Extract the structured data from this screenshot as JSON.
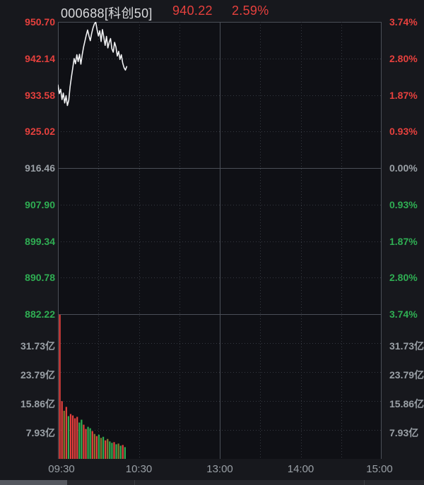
{
  "header": {
    "code_name": "000688[科创50]",
    "last": "940.22",
    "change_pct": "2.59%"
  },
  "colors": {
    "up": "#e6403d",
    "down": "#2fae53",
    "flat": "#8a7a2f",
    "neutral": "#9aa0a6",
    "line": "#f0f1f3",
    "grid": "#363a42",
    "frame": "#4b4f58",
    "plot_bg": "#0f1015",
    "page_bg": "#17181d"
  },
  "chart_data": {
    "type": "line",
    "title": "000688[科创50] intraday (分时) price with volume",
    "symbol": "000688",
    "index_name": "科创50",
    "last_price": 940.22,
    "change_percent": 2.59,
    "prev_close": 916.46,
    "price_axis": {
      "labels": [
        "950.70",
        "942.14",
        "933.58",
        "925.02",
        "916.46",
        "907.90",
        "899.34",
        "890.78",
        "882.22"
      ],
      "colors": [
        "up",
        "up",
        "up",
        "up",
        "neutral",
        "down",
        "down",
        "down",
        "down"
      ],
      "max": 950.7,
      "min": 882.22
    },
    "pct_axis": {
      "labels": [
        "3.74%",
        "2.80%",
        "1.87%",
        "0.93%",
        "0.00%",
        "0.93%",
        "1.87%",
        "2.80%",
        "3.74%"
      ],
      "colors": [
        "up",
        "up",
        "up",
        "up",
        "neutral",
        "down",
        "down",
        "down",
        "down"
      ]
    },
    "volume_axis": {
      "labels": [
        "31.73亿",
        "23.79亿",
        "15.86亿",
        "7.93亿"
      ],
      "values": [
        31.73,
        23.79,
        15.86,
        7.93
      ],
      "max": 40.64,
      "unit": "亿"
    },
    "time_ticks": [
      "09:30",
      "10:30",
      "13:00",
      "14:00",
      "15:00"
    ],
    "session_minutes": 240,
    "minutes_elapsed": 51,
    "prices": [
      935.9,
      933.9,
      934.9,
      932.5,
      934.0,
      931.7,
      933.4,
      931.1,
      932.3,
      935.5,
      937.8,
      939.9,
      942.1,
      940.9,
      943.0,
      941.4,
      943.1,
      940.8,
      943.0,
      944.8,
      946.2,
      947.6,
      948.8,
      947.4,
      946.3,
      948.0,
      949.3,
      950.2,
      950.7,
      948.9,
      947.4,
      948.6,
      946.1,
      948.9,
      947.1,
      945.2,
      947.3,
      944.6,
      945.9,
      946.8,
      944.4,
      943.6,
      945.9,
      944.8,
      942.7,
      943.8,
      941.9,
      943.0,
      941.1,
      940.0,
      939.4,
      940.22
    ],
    "volume_bars": {
      "unit": "亿",
      "values": [
        40.5,
        16.2,
        13.5,
        14.6,
        12.0,
        12.6,
        12.2,
        11.4,
        11.8,
        10.2,
        11.0,
        9.6,
        8.4,
        9.0,
        8.6,
        7.8,
        7.0,
        6.4,
        6.8,
        5.9,
        6.2,
        5.2,
        5.6,
        4.9,
        4.5,
        4.7,
        4.1,
        4.3,
        3.7,
        3.9,
        3.3
      ],
      "colors": [
        "up",
        "up",
        "flat",
        "up",
        "down",
        "up",
        "up",
        "up",
        "up",
        "down",
        "down",
        "up",
        "up",
        "down",
        "down",
        "up",
        "flat",
        "up",
        "down",
        "flat",
        "down",
        "up",
        "flat",
        "down",
        "down",
        "up",
        "down",
        "flat",
        "down",
        "up",
        "down"
      ]
    },
    "grid": "on",
    "legend": "none"
  }
}
